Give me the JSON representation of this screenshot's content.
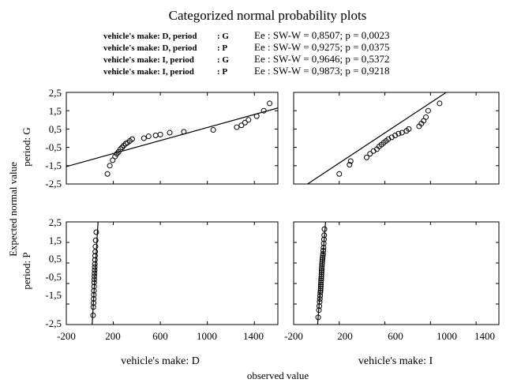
{
  "chart_data": [
    {
      "type": "scatter",
      "title": "Categorized normal probability plots",
      "legend": [
        {
          "left": "vehicle's make: D, period",
          "sep": ": G",
          "stat": "Ee :  SW-W = 0,8507; p = 0,0023"
        },
        {
          "left": "vehicle's make: D, period",
          "sep": ": P",
          "stat": "Ee :  SW-W = 0,9275; p = 0,0375"
        },
        {
          "left": "vehicle's make: I, period",
          "sep": ": G",
          "stat": "Ee :  SW-W = 0,9646; p = 0,5372"
        },
        {
          "left": "vehicle's make: I, period",
          "sep": ": P",
          "stat": "Ee :  SW-W = 0,9873; p = 0,9218"
        }
      ],
      "ylabel_main": "Expected normal value",
      "row_labels": [
        "period: G",
        "period: P"
      ],
      "col_labels": [
        "vehicle's make: D",
        "vehicle's make: I"
      ],
      "xlabel": "observed value",
      "x_ticks": [
        "-200",
        "200",
        "600",
        "1000",
        "1400"
      ],
      "y_ticks": [
        "2,5",
        "1,5",
        "0,5",
        "-0,5",
        "-1,5",
        "-2,5"
      ],
      "xlim": [
        -200,
        1600
      ],
      "ylim": [
        -2.5,
        2.5
      ],
      "grid": false,
      "panels": [
        {
          "row": "G",
          "col": "D",
          "line": [
            [
              -200,
              -1.55
            ],
            [
              1600,
              1.65
            ]
          ],
          "x": [
            150,
            170,
            195,
            215,
            230,
            245,
            260,
            275,
            290,
            305,
            320,
            340,
            360,
            460,
            500,
            560,
            600,
            680,
            800,
            1050,
            1250,
            1290,
            1320,
            1350,
            1420,
            1480,
            1530
          ],
          "y": [
            -1.95,
            -1.5,
            -1.2,
            -1.0,
            -0.85,
            -0.75,
            -0.6,
            -0.5,
            -0.4,
            -0.3,
            -0.25,
            -0.15,
            -0.05,
            0.0,
            0.1,
            0.15,
            0.2,
            0.3,
            0.35,
            0.45,
            0.6,
            0.7,
            0.85,
            1.0,
            1.2,
            1.5,
            1.9
          ]
        },
        {
          "row": "G",
          "col": "I",
          "line": [
            [
              -200,
              -3.0
            ],
            [
              1600,
              4.4
            ]
          ],
          "x": [
            200,
            290,
            300,
            440,
            470,
            500,
            530,
            550,
            570,
            590,
            610,
            630,
            660,
            690,
            720,
            750,
            790,
            810,
            900,
            920,
            940,
            960,
            980,
            1080
          ],
          "y": [
            -1.95,
            -1.45,
            -1.25,
            -1.05,
            -0.85,
            -0.7,
            -0.6,
            -0.45,
            -0.35,
            -0.25,
            -0.15,
            -0.05,
            0.05,
            0.15,
            0.25,
            0.3,
            0.4,
            0.5,
            0.65,
            0.8,
            0.95,
            1.15,
            1.5,
            1.9
          ]
        },
        {
          "row": "P",
          "col": "D",
          "line": [
            [
              20,
              -2.5
            ],
            [
              70,
              2.5
            ]
          ],
          "x": [
            28,
            30,
            32,
            33,
            34,
            35,
            36,
            37,
            38,
            39,
            40,
            41,
            42,
            43,
            44,
            45,
            46,
            48,
            50,
            55
          ],
          "y": [
            -2.05,
            -1.65,
            -1.45,
            -1.25,
            -1.05,
            -0.85,
            -0.65,
            -0.45,
            -0.3,
            -0.15,
            0.0,
            0.15,
            0.3,
            0.45,
            0.65,
            0.85,
            1.05,
            1.3,
            1.6,
            2.0
          ]
        },
        {
          "row": "P",
          "col": "I",
          "line": [
            [
              10,
              -2.5
            ],
            [
              80,
              2.5
            ]
          ],
          "x": [
            15,
            22,
            25,
            28,
            30,
            32,
            34,
            36,
            37,
            38,
            39,
            40,
            41,
            42,
            43,
            44,
            45,
            46,
            47,
            48,
            49,
            50,
            52,
            54,
            56,
            58,
            60,
            62,
            64,
            66,
            68,
            70
          ],
          "y": [
            -2.15,
            -1.8,
            -1.6,
            -1.4,
            -1.25,
            -1.1,
            -0.95,
            -0.85,
            -0.75,
            -0.65,
            -0.55,
            -0.45,
            -0.35,
            -0.25,
            -0.15,
            -0.05,
            0.05,
            0.15,
            0.25,
            0.35,
            0.45,
            0.55,
            0.65,
            0.75,
            0.85,
            0.95,
            1.1,
            1.25,
            1.45,
            1.65,
            1.85,
            2.15
          ]
        }
      ]
    }
  ]
}
